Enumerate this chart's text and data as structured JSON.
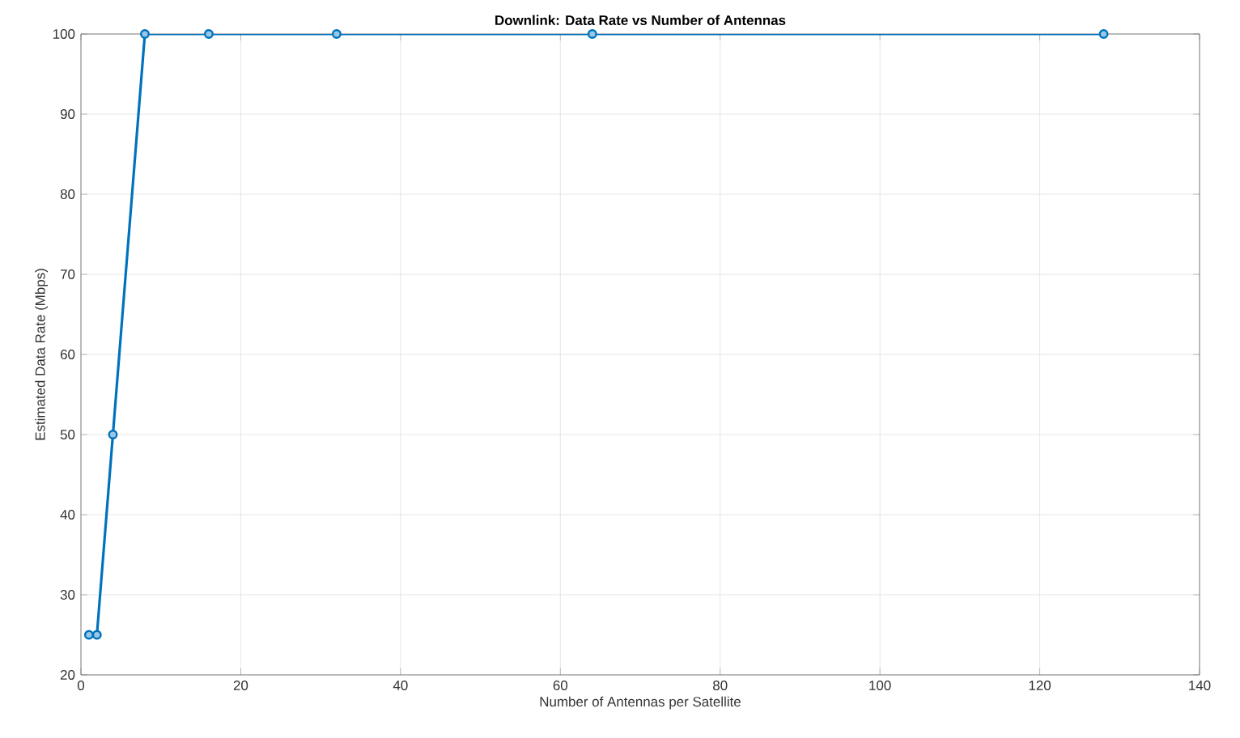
{
  "chart_data": {
    "type": "line",
    "title": "Downlink: Data Rate vs Number of Antennas",
    "xlabel": "Number of Antennas per Satellite",
    "ylabel": "Estimated Data Rate (Mbps)",
    "x": [
      1,
      2,
      4,
      8,
      16,
      32,
      64,
      128
    ],
    "series": [
      {
        "color": "#0072bd",
        "values": [
          25,
          25,
          50,
          100,
          100,
          100,
          100,
          100
        ]
      }
    ],
    "xlim": [
      0,
      140
    ],
    "ylim": [
      20,
      100
    ],
    "xticks": [
      0,
      20,
      40,
      60,
      80,
      100,
      120,
      140
    ],
    "yticks": [
      20,
      30,
      40,
      50,
      60,
      70,
      80,
      90,
      100
    ],
    "grid": true,
    "marker": "circle",
    "line_style": "solid"
  }
}
